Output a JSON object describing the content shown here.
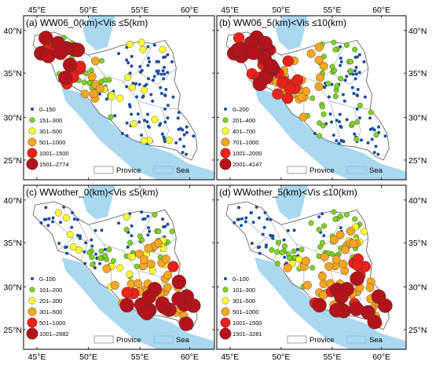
{
  "figure": {
    "colors": {
      "sea": "#a9d8f0",
      "land": "#ffffff",
      "border": "#9a9a9a",
      "frame": "#000000",
      "cls1": "#1f4e9c",
      "cls2": "#7ed321",
      "cls3": "#ffff33",
      "cls4": "#f5a623",
      "cls5": "#e8231a",
      "cls6": "#b3141b"
    },
    "legend_common": {
      "provice": "Provice",
      "sea": "Sea"
    },
    "panels": [
      {
        "title": "(a) WW06_0(km)<Vis ≤5(km)",
        "x_ticks": [
          "45°E",
          "50°E",
          "55°E",
          "60°E"
        ],
        "y_ticks": [
          "40°N",
          "35°N",
          "30°N",
          "25°N"
        ],
        "classes": [
          "0–150",
          "151–300",
          "301–500",
          "501–1000",
          "1001–1500",
          "1501–2774"
        ]
      },
      {
        "title": "(b) WW06_5(km)<Vis ≤10(km)",
        "x_ticks": [
          "45°E",
          "50°E",
          "55°E",
          "60°E"
        ],
        "y_ticks": [
          "40°N",
          "35°N",
          "30°N",
          "25°N"
        ],
        "classes": [
          "0–200",
          "201–400",
          "401–700",
          "701–1000",
          "1001–2000",
          "2001–4147"
        ]
      },
      {
        "title": "(c) WWother_0(km)<Vis ≤5(km)",
        "x_ticks": [
          "45°E",
          "50°E",
          "55°E",
          "60°E"
        ],
        "y_ticks": [
          "40°N",
          "35°N",
          "30°N",
          "25°N"
        ],
        "classes": [
          "0–100",
          "101–200",
          "201–300",
          "301–500",
          "501–1000",
          "1001–2882"
        ]
      },
      {
        "title": "(d) WWother_5(km)<Vis ≤10(km)",
        "x_ticks": [
          "45°E",
          "50°E",
          "55°E",
          "60°E"
        ],
        "y_ticks": [
          "40°N",
          "35°N",
          "30°N",
          "25°N"
        ],
        "classes": [
          "0–100",
          "101–300",
          "301–500",
          "501–1000",
          "1001–1500",
          "1501–3281"
        ]
      }
    ]
  }
}
